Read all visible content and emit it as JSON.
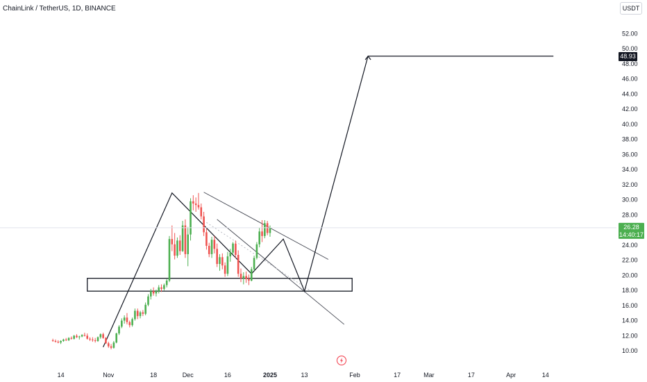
{
  "header": {
    "title": "ChainLink / TetherUS, 1D, BINANCE",
    "currency": "USDT"
  },
  "chart_data": {
    "type": "candlestick",
    "ylim": [
      9.0,
      53.5
    ],
    "y_ticks": [
      "10.00",
      "12.00",
      "14.00",
      "16.00",
      "18.00",
      "20.00",
      "22.00",
      "24.00",
      "26.00",
      "28.00",
      "30.00",
      "32.00",
      "34.00",
      "36.00",
      "38.00",
      "40.00",
      "42.00",
      "44.00",
      "46.00",
      "48.00",
      "50.00",
      "52.00"
    ],
    "x_ticks": [
      {
        "label": "14",
        "bar": -14
      },
      {
        "label": "Nov",
        "bar": 4
      },
      {
        "label": "18",
        "bar": 21
      },
      {
        "label": "Dec",
        "bar": 34
      },
      {
        "label": "16",
        "bar": 49
      },
      {
        "label": "2025",
        "bar": 65,
        "bold": true
      },
      {
        "label": "13",
        "bar": 78
      },
      {
        "label": "Feb",
        "bar": 97
      },
      {
        "label": "17",
        "bar": 113
      },
      {
        "label": "Mar",
        "bar": 125
      },
      {
        "label": "17",
        "bar": 141
      },
      {
        "label": "Apr",
        "bar": 156
      },
      {
        "label": "14",
        "bar": 169
      }
    ],
    "bar_index_start": -17,
    "colors": {
      "up": "#4caf50",
      "down": "#ef5350",
      "line": "#131722",
      "price_badge": "#4caf50"
    },
    "candles": [
      [
        11.4,
        11.6,
        11.2,
        11.3
      ],
      [
        11.3,
        11.5,
        11.1,
        11.2
      ],
      [
        11.2,
        11.4,
        11.0,
        11.1
      ],
      [
        11.1,
        11.4,
        10.9,
        11.3
      ],
      [
        11.3,
        11.6,
        11.2,
        11.5
      ],
      [
        11.5,
        11.7,
        11.3,
        11.4
      ],
      [
        11.4,
        11.8,
        11.3,
        11.7
      ],
      [
        11.7,
        11.9,
        11.5,
        11.6
      ],
      [
        11.6,
        12.1,
        11.5,
        12.0
      ],
      [
        12.0,
        12.2,
        11.7,
        11.8
      ],
      [
        11.8,
        12.0,
        11.5,
        11.9
      ],
      [
        11.9,
        12.2,
        11.8,
        12.1
      ],
      [
        12.1,
        12.4,
        11.9,
        12.0
      ],
      [
        12.0,
        12.3,
        11.5,
        11.6
      ],
      [
        11.6,
        11.8,
        11.3,
        11.5
      ],
      [
        11.5,
        11.8,
        11.2,
        11.4
      ],
      [
        11.4,
        11.7,
        11.1,
        11.3
      ],
      [
        11.3,
        11.9,
        11.2,
        11.8
      ],
      [
        11.8,
        12.3,
        11.6,
        12.2
      ],
      [
        12.2,
        12.4,
        11.6,
        11.7
      ],
      [
        11.7,
        11.8,
        10.9,
        11.0
      ],
      [
        11.0,
        11.2,
        10.4,
        10.6
      ],
      [
        10.6,
        10.9,
        10.2,
        10.4
      ],
      [
        10.4,
        11.3,
        10.3,
        11.1
      ],
      [
        11.1,
        12.4,
        11.0,
        12.3
      ],
      [
        12.3,
        13.4,
        12.1,
        13.2
      ],
      [
        13.2,
        14.3,
        13.0,
        14.0
      ],
      [
        14.0,
        14.7,
        13.6,
        14.4
      ],
      [
        14.4,
        15.0,
        13.5,
        13.8
      ],
      [
        13.8,
        14.0,
        13.1,
        13.4
      ],
      [
        13.4,
        14.4,
        13.2,
        14.2
      ],
      [
        14.2,
        15.6,
        14.0,
        15.3
      ],
      [
        15.3,
        15.6,
        14.2,
        14.6
      ],
      [
        14.6,
        15.3,
        14.3,
        15.1
      ],
      [
        15.1,
        15.4,
        14.6,
        14.9
      ],
      [
        14.9,
        16.4,
        14.7,
        16.1
      ],
      [
        16.1,
        17.5,
        15.9,
        17.2
      ],
      [
        17.2,
        18.2,
        16.8,
        17.9
      ],
      [
        17.9,
        18.4,
        17.3,
        17.6
      ],
      [
        17.6,
        18.1,
        17.2,
        17.9
      ],
      [
        17.9,
        18.7,
        17.6,
        18.4
      ],
      [
        18.4,
        18.8,
        17.8,
        18.2
      ],
      [
        18.2,
        18.9,
        18.0,
        18.7
      ],
      [
        18.7,
        19.5,
        18.4,
        19.3
      ],
      [
        19.3,
        25.2,
        19.1,
        24.8
      ],
      [
        24.8,
        26.6,
        23.2,
        24.1
      ],
      [
        24.1,
        25.6,
        22.1,
        22.6
      ],
      [
        22.6,
        25.0,
        22.3,
        24.6
      ],
      [
        24.6,
        25.3,
        22.7,
        23.2
      ],
      [
        23.2,
        27.2,
        23.1,
        26.6
      ],
      [
        26.6,
        27.4,
        22.3,
        22.8
      ],
      [
        22.8,
        26.4,
        21.2,
        25.4
      ],
      [
        25.4,
        30.2,
        24.6,
        29.8
      ],
      [
        29.8,
        30.6,
        28.6,
        29.5
      ],
      [
        29.5,
        30.3,
        28.4,
        29.3
      ],
      [
        29.3,
        30.9,
        28.7,
        29.0
      ],
      [
        29.0,
        29.5,
        27.4,
        27.8
      ],
      [
        27.8,
        28.4,
        25.2,
        25.7
      ],
      [
        25.7,
        26.2,
        23.4,
        23.9
      ],
      [
        23.9,
        24.3,
        22.4,
        22.8
      ],
      [
        22.8,
        25.1,
        22.3,
        24.7
      ],
      [
        24.7,
        25.2,
        22.9,
        23.5
      ],
      [
        23.5,
        24.2,
        21.1,
        21.5
      ],
      [
        21.5,
        22.8,
        20.6,
        22.4
      ],
      [
        22.4,
        22.9,
        20.8,
        21.3
      ],
      [
        21.3,
        21.7,
        19.8,
        20.2
      ],
      [
        20.2,
        23.1,
        19.9,
        22.5
      ],
      [
        22.5,
        23.5,
        21.8,
        23.0
      ],
      [
        23.0,
        24.4,
        22.7,
        24.2
      ],
      [
        24.2,
        24.6,
        22.3,
        22.7
      ],
      [
        22.7,
        23.3,
        19.8,
        20.2
      ],
      [
        20.2,
        20.9,
        19.1,
        19.6
      ],
      [
        19.6,
        20.4,
        18.8,
        19.9
      ],
      [
        19.9,
        20.5,
        19.0,
        19.5
      ],
      [
        19.5,
        20.1,
        18.7,
        19.3
      ],
      [
        19.3,
        21.1,
        19.2,
        20.8
      ],
      [
        20.8,
        22.6,
        20.6,
        22.3
      ],
      [
        22.3,
        24.4,
        22.1,
        24.1
      ],
      [
        24.1,
        26.3,
        23.7,
        25.8
      ],
      [
        25.8,
        27.3,
        24.4,
        25.2
      ],
      [
        25.2,
        27.3,
        24.9,
        26.9
      ],
      [
        26.9,
        27.2,
        25.3,
        25.6
      ],
      [
        25.6,
        26.6,
        25.1,
        26.3
      ]
    ],
    "annotations": {
      "support_zone": {
        "from_bar": -4,
        "to_bar": 96,
        "low": 17.9,
        "high": 19.6
      },
      "channel_upper": [
        [
          40,
          31.0
        ],
        [
          87,
          22.1
        ]
      ],
      "channel_lower": [
        [
          45,
          27.4
        ],
        [
          93,
          13.5
        ]
      ],
      "dotted_mid": [
        [
          41,
          27.0
        ],
        [
          80,
          18.0
        ]
      ],
      "zigzag": [
        [
          2,
          10.5
        ],
        [
          28,
          30.9
        ],
        [
          58,
          20.2
        ],
        [
          70,
          24.8
        ],
        [
          78,
          17.9
        ],
        [
          102,
          49.0
        ],
        [
          172,
          49.0
        ]
      ],
      "target_label": "48.93",
      "current_price": "26.28",
      "countdown": "14:40:17",
      "current_price_value": 26.3
    }
  }
}
